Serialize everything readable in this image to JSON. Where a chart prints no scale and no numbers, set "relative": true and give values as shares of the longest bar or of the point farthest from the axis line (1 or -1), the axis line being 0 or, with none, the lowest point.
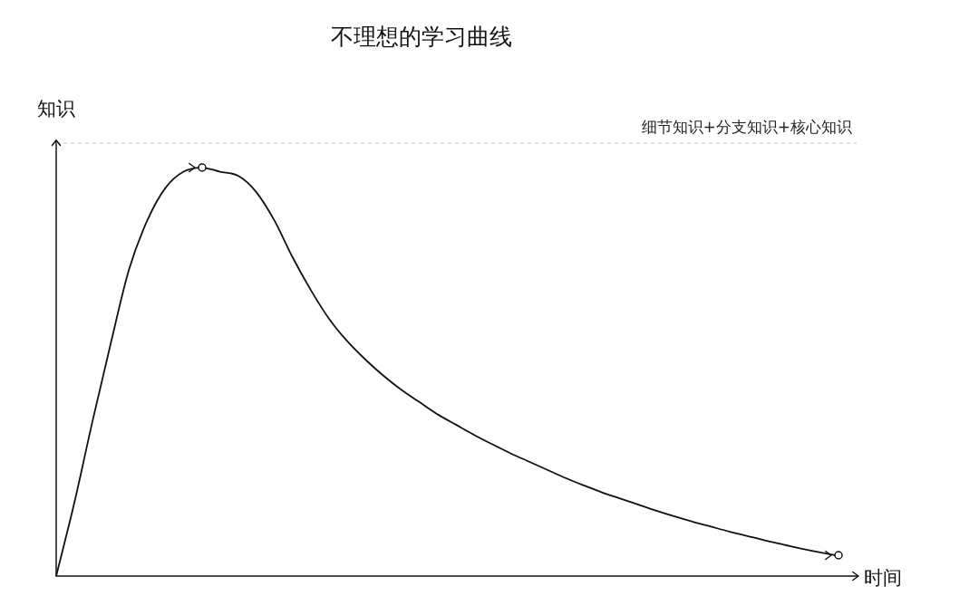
{
  "chart_data": {
    "type": "line",
    "title": "不理想的学习曲线",
    "xlabel": "时间",
    "ylabel": "知识",
    "relative": true,
    "categories": [
      null,
      null,
      null,
      null,
      null,
      null,
      null,
      null,
      null,
      null,
      null,
      null,
      null,
      null,
      null,
      null,
      null,
      null,
      null,
      null,
      null,
      null,
      null,
      null,
      null,
      null,
      null,
      null,
      null,
      null,
      null,
      null,
      null,
      null,
      null,
      null,
      null,
      null,
      null,
      null,
      null,
      null,
      null,
      null,
      null
    ],
    "series": [
      {
        "color": "#111111",
        "values": [
          0,
          0.18,
          0.38,
          0.57,
          0.75,
          0.87,
          0.95,
          0.99,
          1,
          0.99,
          0.98,
          0.94,
          0.87,
          0.78,
          0.7,
          0.63,
          0.575,
          0.53,
          0.49,
          0.455,
          0.425,
          0.395,
          0.37,
          0.345,
          0.322,
          0.3,
          0.28,
          0.26,
          0.24,
          0.222,
          0.205,
          0.19,
          0.175,
          0.16,
          0.146,
          0.133,
          0.121,
          0.109,
          0.098,
          0.087,
          0.077,
          0.067,
          0.058,
          0.05,
          null
        ]
      }
    ],
    "ref_lines": [
      {
        "axis": "y",
        "value": 1.06,
        "label": "细节知识+分支知识+核心知识",
        "color": "#c8c8c8",
        "line_style": "dashed"
      }
    ],
    "legend": false,
    "marker": "none",
    "line_style": "solid"
  }
}
